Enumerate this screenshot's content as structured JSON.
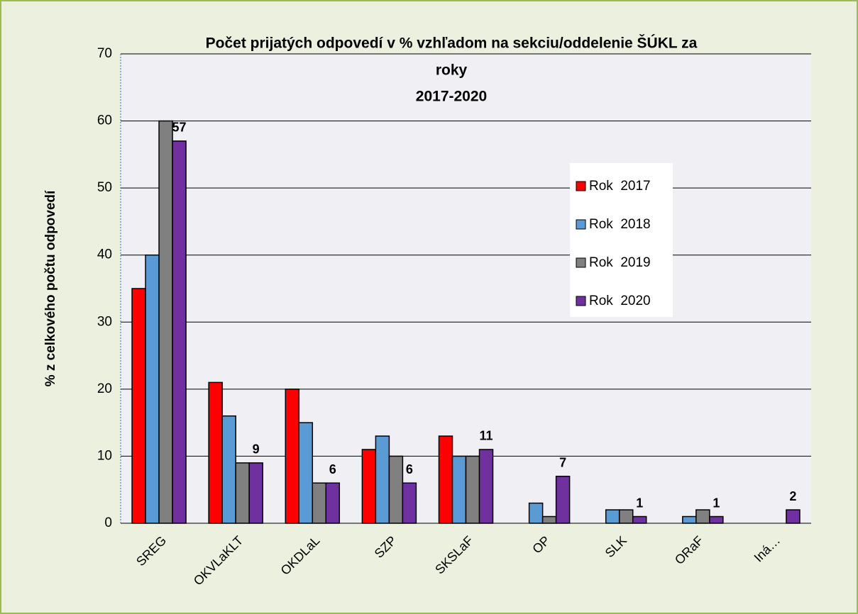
{
  "chart_data": {
    "type": "bar",
    "title": [
      "Počet prijatých odpovedí v % vzhľadom na sekciu/oddelenie ŠÚKL za",
      "roky",
      "2017-2020"
    ],
    "y_label": "% z celkového počtu odpovedí",
    "categories": [
      "SREG",
      "OKVLaKLT",
      "OKDLaL",
      "SZP",
      "SKSLaF",
      "OP",
      "SLK",
      "ORaF",
      "Iná…"
    ],
    "series": [
      {
        "name": "Rok  2017",
        "color": "#ff0000",
        "legend_text_color": "#ff0000",
        "values": [
          35,
          21,
          20,
          11,
          13,
          0,
          0,
          0,
          0
        ]
      },
      {
        "name": "Rok  2018",
        "color": "#5b9bd5",
        "legend_text_color": "#8496b0",
        "values": [
          40,
          16,
          15,
          13,
          10,
          3,
          2,
          1,
          0
        ]
      },
      {
        "name": "Rok  2019",
        "color": "#808080",
        "legend_text_color": "#7f7f7f",
        "values": [
          60,
          9,
          6,
          10,
          10,
          1,
          2,
          2,
          0
        ]
      },
      {
        "name": "Rok  2020",
        "color": "#7030a0",
        "legend_text_color": "#7030a0",
        "show_labels": true,
        "values": [
          57,
          9,
          6,
          6,
          11,
          7,
          1,
          1,
          2
        ]
      }
    ],
    "ylim": [
      0,
      70
    ],
    "yticks": [
      0,
      10,
      20,
      30,
      40,
      50,
      60,
      70
    ],
    "grid": true,
    "legend": "right"
  }
}
